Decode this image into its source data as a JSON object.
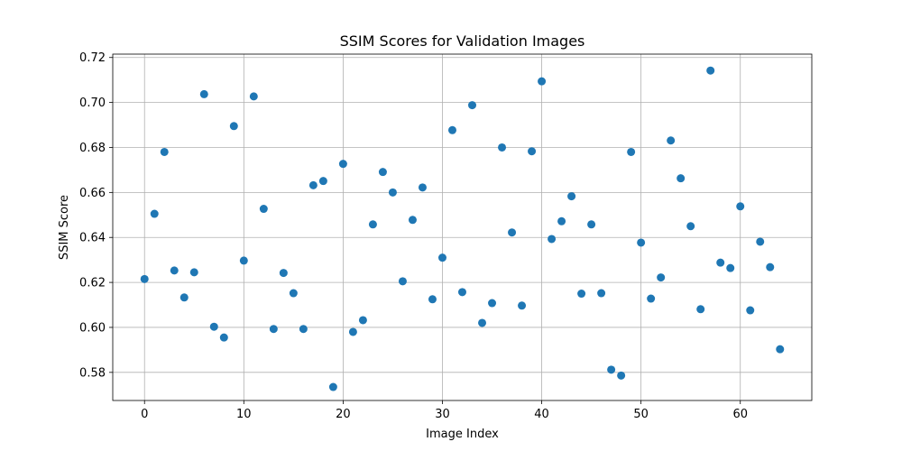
{
  "chart_data": {
    "type": "scatter",
    "title": "SSIM Scores for Validation Images",
    "xlabel": "Image Index",
    "ylabel": "SSIM Score",
    "xlim": [
      -3.2,
      67.2
    ],
    "ylim": [
      0.5675,
      0.7215
    ],
    "xticks": [
      0,
      10,
      20,
      30,
      40,
      50,
      60
    ],
    "yticks": [
      0.58,
      0.6,
      0.62,
      0.64,
      0.66,
      0.68,
      0.7,
      0.72
    ],
    "grid": true,
    "marker_color": "#1f77b4",
    "x": [
      0,
      1,
      2,
      3,
      4,
      5,
      6,
      7,
      8,
      9,
      10,
      11,
      12,
      13,
      14,
      15,
      16,
      17,
      18,
      19,
      20,
      21,
      22,
      23,
      24,
      25,
      26,
      27,
      28,
      29,
      30,
      31,
      32,
      33,
      34,
      35,
      36,
      37,
      38,
      39,
      40,
      41,
      42,
      43,
      44,
      45,
      46,
      47,
      48,
      49,
      50,
      51,
      52,
      53,
      54,
      55,
      56,
      57,
      58,
      59,
      60,
      61,
      62,
      63,
      64
    ],
    "y": [
      0.6215,
      0.6505,
      0.678,
      0.6253,
      0.6133,
      0.6245,
      0.7037,
      0.6003,
      0.5955,
      0.6895,
      0.6297,
      0.7027,
      0.6527,
      0.5993,
      0.6242,
      0.6152,
      0.5993,
      0.6632,
      0.6651,
      0.5735,
      0.6727,
      0.598,
      0.6032,
      0.6458,
      0.6691,
      0.66,
      0.6205,
      0.6478,
      0.6622,
      0.6125,
      0.631,
      0.6877,
      0.6157,
      0.6988,
      0.602,
      0.6108,
      0.68,
      0.6422,
      0.6097,
      0.6783,
      0.7094,
      0.6393,
      0.6472,
      0.6583,
      0.615,
      0.6458,
      0.6152,
      0.5812,
      0.5786,
      0.678,
      0.6377,
      0.6128,
      0.6222,
      0.6831,
      0.6663,
      0.645,
      0.6081,
      0.7142,
      0.6288,
      0.6264,
      0.6538,
      0.6076,
      0.6381,
      0.6268,
      0.5903
    ]
  }
}
